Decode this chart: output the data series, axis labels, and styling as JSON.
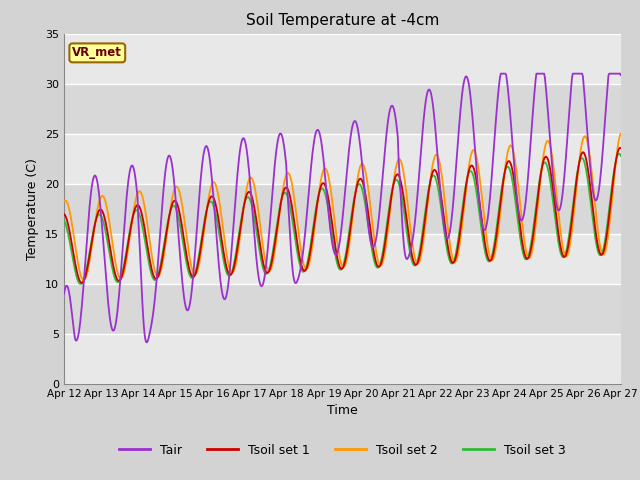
{
  "title": "Soil Temperature at -4cm",
  "xlabel": "Time",
  "ylabel": "Temperature (C)",
  "ylim": [
    0,
    35
  ],
  "tair_color": "#9b30d0",
  "tsoil1_color": "#cc0000",
  "tsoil2_color": "#ff9900",
  "tsoil3_color": "#33bb33",
  "annotation_text": "VR_met",
  "annotation_bg": "#ffff99",
  "annotation_border": "#996600",
  "legend_labels": [
    "Tair",
    "Tsoil set 1",
    "Tsoil set 2",
    "Tsoil set 3"
  ],
  "xtick_labels": [
    "Apr 12",
    "Apr 13",
    "Apr 14",
    "Apr 15",
    "Apr 16",
    "Apr 17",
    "Apr 18",
    "Apr 19",
    "Apr 20",
    "Apr 21",
    "Apr 22",
    "Apr 23",
    "Apr 24",
    "Apr 25",
    "Apr 26",
    "Apr 27"
  ],
  "ytick_labels": [
    0,
    5,
    10,
    15,
    20,
    25,
    30,
    35
  ],
  "fig_facecolor": "#d3d3d3",
  "ax_facecolor": "#e8e8e8",
  "band_color_light": "#e8e8e8",
  "band_color_dark": "#d8d8d8"
}
